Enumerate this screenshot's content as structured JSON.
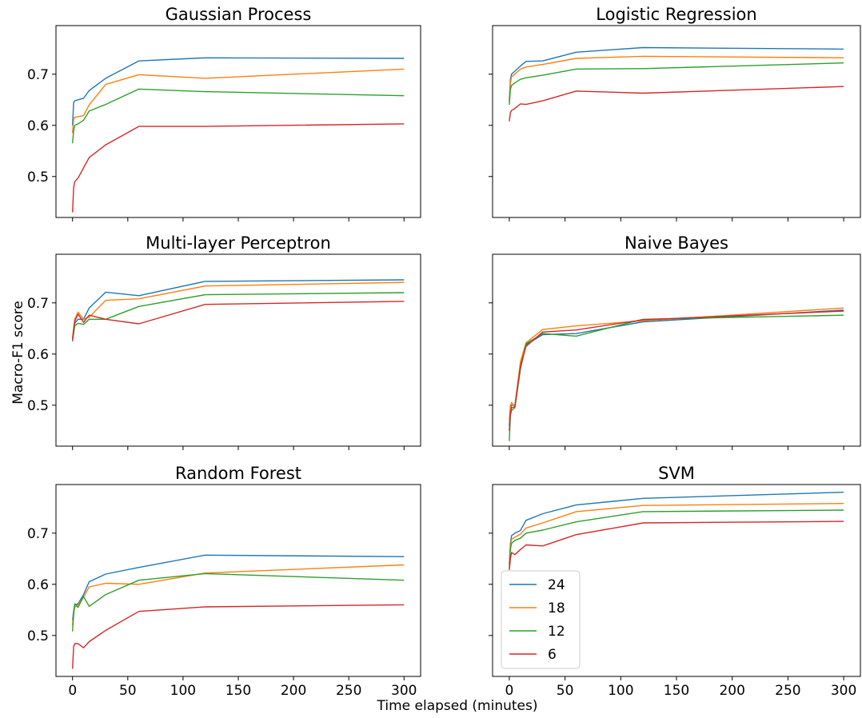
{
  "figure": {
    "xlabel": "Time elapsed (minutes)",
    "ylabel": "Macro-F1 score"
  },
  "legend": {
    "placement": "lower-left of SVM panel",
    "entries": [
      {
        "label": "24",
        "color": "#1f77b4"
      },
      {
        "label": "18",
        "color": "#ff7f0e"
      },
      {
        "label": "12",
        "color": "#2ca02c"
      },
      {
        "label": "6",
        "color": "#d62728"
      }
    ]
  },
  "chart_data": [
    {
      "type": "line",
      "title": "Gaussian Process",
      "xlim": [
        -15,
        315
      ],
      "ylim": [
        0.42,
        0.795
      ],
      "x": [
        0,
        1,
        2,
        5,
        10,
        15,
        30,
        60,
        120,
        300
      ],
      "series": [
        {
          "name": "24",
          "color": "#1f77b4",
          "values": [
            0.6,
            0.645,
            0.648,
            0.65,
            0.653,
            0.668,
            0.692,
            0.726,
            0.732,
            0.731
          ]
        },
        {
          "name": "18",
          "color": "#ff7f0e",
          "values": [
            0.585,
            0.612,
            0.616,
            0.617,
            0.619,
            0.64,
            0.68,
            0.699,
            0.692,
            0.71
          ]
        },
        {
          "name": "12",
          "color": "#2ca02c",
          "values": [
            0.565,
            0.59,
            0.6,
            0.603,
            0.61,
            0.628,
            0.641,
            0.671,
            0.666,
            0.658
          ]
        },
        {
          "name": "6",
          "color": "#d62728",
          "values": [
            0.43,
            0.478,
            0.49,
            0.497,
            0.517,
            0.537,
            0.562,
            0.598,
            0.598,
            0.603
          ]
        }
      ],
      "yticks": [
        0.5,
        0.6,
        0.7
      ],
      "ytick_labels": [
        "0.5",
        "0.6",
        "0.7"
      ]
    },
    {
      "type": "line",
      "title": "Logistic Regression",
      "xlim": [
        -15,
        315
      ],
      "ylim": [
        0.42,
        0.795
      ],
      "x": [
        0,
        1,
        2,
        5,
        10,
        15,
        30,
        60,
        120,
        300
      ],
      "series": [
        {
          "name": "24",
          "color": "#1f77b4",
          "values": [
            0.65,
            0.69,
            0.7,
            0.706,
            0.716,
            0.725,
            0.726,
            0.743,
            0.752,
            0.749
          ]
        },
        {
          "name": "18",
          "color": "#ff7f0e",
          "values": [
            0.645,
            0.682,
            0.695,
            0.7,
            0.71,
            0.714,
            0.719,
            0.731,
            0.735,
            0.732
          ]
        },
        {
          "name": "12",
          "color": "#2ca02c",
          "values": [
            0.64,
            0.67,
            0.678,
            0.683,
            0.69,
            0.693,
            0.698,
            0.71,
            0.711,
            0.722
          ]
        },
        {
          "name": "6",
          "color": "#d62728",
          "values": [
            0.608,
            0.625,
            0.629,
            0.633,
            0.642,
            0.641,
            0.648,
            0.667,
            0.663,
            0.676
          ]
        }
      ],
      "yticks": [
        0.5,
        0.6,
        0.7
      ],
      "ytick_labels": [
        "",
        "",
        ""
      ]
    },
    {
      "type": "line",
      "title": "Multi-layer Perceptron",
      "xlim": [
        -15,
        315
      ],
      "ylim": [
        0.42,
        0.795
      ],
      "x": [
        0,
        1,
        2,
        5,
        10,
        15,
        30,
        60,
        120,
        300
      ],
      "series": [
        {
          "name": "24",
          "color": "#1f77b4",
          "values": [
            0.63,
            0.648,
            0.66,
            0.668,
            0.668,
            0.69,
            0.721,
            0.714,
            0.742,
            0.745
          ]
        },
        {
          "name": "18",
          "color": "#ff7f0e",
          "values": [
            0.632,
            0.65,
            0.668,
            0.682,
            0.668,
            0.672,
            0.705,
            0.708,
            0.733,
            0.74
          ]
        },
        {
          "name": "12",
          "color": "#2ca02c",
          "values": [
            0.628,
            0.64,
            0.655,
            0.66,
            0.658,
            0.668,
            0.668,
            0.693,
            0.716,
            0.72
          ]
        },
        {
          "name": "6",
          "color": "#d62728",
          "values": [
            0.625,
            0.648,
            0.664,
            0.678,
            0.662,
            0.676,
            0.668,
            0.659,
            0.697,
            0.703
          ]
        }
      ],
      "yticks": [
        0.5,
        0.6,
        0.7
      ],
      "ytick_labels": [
        "0.5",
        "0.6",
        "0.7"
      ]
    },
    {
      "type": "line",
      "title": "Naive Bayes",
      "xlim": [
        -15,
        315
      ],
      "ylim": [
        0.42,
        0.795
      ],
      "x": [
        0,
        1,
        2,
        5,
        10,
        15,
        30,
        60,
        120,
        300
      ],
      "series": [
        {
          "name": "24",
          "color": "#1f77b4",
          "values": [
            0.46,
            0.49,
            0.5,
            0.5,
            0.58,
            0.618,
            0.638,
            0.64,
            0.663,
            0.686
          ]
        },
        {
          "name": "18",
          "color": "#ff7f0e",
          "values": [
            0.47,
            0.5,
            0.505,
            0.498,
            0.585,
            0.622,
            0.648,
            0.655,
            0.665,
            0.69
          ]
        },
        {
          "name": "12",
          "color": "#2ca02c",
          "values": [
            0.43,
            0.48,
            0.49,
            0.495,
            0.57,
            0.62,
            0.64,
            0.635,
            0.668,
            0.676
          ]
        },
        {
          "name": "6",
          "color": "#d62728",
          "values": [
            0.45,
            0.485,
            0.495,
            0.497,
            0.575,
            0.615,
            0.643,
            0.647,
            0.667,
            0.684
          ]
        }
      ],
      "yticks": [
        0.5,
        0.6,
        0.7
      ],
      "ytick_labels": [
        "",
        "",
        ""
      ]
    },
    {
      "type": "line",
      "title": "Random Forest",
      "xlim": [
        -15,
        315
      ],
      "ylim": [
        0.42,
        0.795
      ],
      "x": [
        0,
        1,
        2,
        5,
        10,
        15,
        30,
        60,
        120,
        300
      ],
      "series": [
        {
          "name": "24",
          "color": "#1f77b4",
          "values": [
            0.53,
            0.548,
            0.56,
            0.562,
            0.58,
            0.605,
            0.62,
            0.633,
            0.657,
            0.654
          ]
        },
        {
          "name": "18",
          "color": "#ff7f0e",
          "values": [
            0.52,
            0.545,
            0.555,
            0.56,
            0.575,
            0.595,
            0.602,
            0.6,
            0.622,
            0.638
          ]
        },
        {
          "name": "12",
          "color": "#2ca02c",
          "values": [
            0.508,
            0.54,
            0.562,
            0.555,
            0.576,
            0.557,
            0.58,
            0.608,
            0.621,
            0.608
          ]
        },
        {
          "name": "6",
          "color": "#d62728",
          "values": [
            0.435,
            0.478,
            0.484,
            0.484,
            0.476,
            0.488,
            0.51,
            0.547,
            0.556,
            0.56
          ]
        }
      ],
      "yticks": [
        0.5,
        0.6,
        0.7
      ],
      "ytick_labels": [
        "0.5",
        "0.6",
        "0.7"
      ]
    },
    {
      "type": "line",
      "title": "SVM",
      "xlim": [
        -15,
        315
      ],
      "ylim": [
        0.42,
        0.795
      ],
      "x": [
        0,
        1,
        2,
        5,
        10,
        15,
        30,
        60,
        120,
        300
      ],
      "series": [
        {
          "name": "24",
          "color": "#1f77b4",
          "values": [
            0.64,
            0.68,
            0.695,
            0.7,
            0.705,
            0.725,
            0.738,
            0.755,
            0.768,
            0.78
          ]
        },
        {
          "name": "18",
          "color": "#ff7f0e",
          "values": [
            0.638,
            0.675,
            0.688,
            0.692,
            0.698,
            0.71,
            0.72,
            0.742,
            0.754,
            0.758
          ]
        },
        {
          "name": "12",
          "color": "#2ca02c",
          "values": [
            0.632,
            0.668,
            0.68,
            0.686,
            0.69,
            0.7,
            0.706,
            0.722,
            0.742,
            0.745
          ]
        },
        {
          "name": "6",
          "color": "#d62728",
          "values": [
            0.628,
            0.65,
            0.662,
            0.658,
            0.668,
            0.677,
            0.675,
            0.697,
            0.72,
            0.723
          ]
        }
      ],
      "yticks": [
        0.5,
        0.6,
        0.7
      ],
      "ytick_labels": [
        "",
        "",
        ""
      ]
    }
  ],
  "xticks": [
    0,
    50,
    100,
    150,
    200,
    250,
    300
  ],
  "xtick_labels": [
    "0",
    "50",
    "100",
    "150",
    "200",
    "250",
    "300"
  ],
  "xtick_labels_hidden": [
    "",
    "",
    "",
    "",
    "",
    "",
    ""
  ]
}
